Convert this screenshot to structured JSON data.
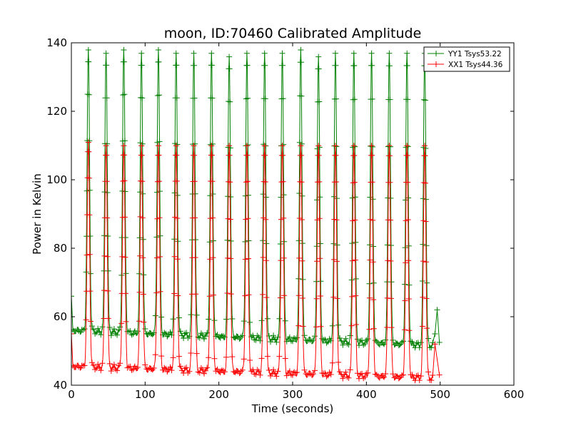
{
  "chart_data": {
    "type": "line",
    "title": "moon, ID:70460 Calibrated Amplitude",
    "xlabel": "Time (seconds)",
    "ylabel": "Power in Kelvin",
    "xlim": [
      0,
      600
    ],
    "ylim": [
      40,
      140
    ],
    "xticks": [
      0,
      100,
      200,
      300,
      400,
      500,
      600
    ],
    "yticks": [
      40,
      60,
      80,
      100,
      120,
      140
    ],
    "grid": false,
    "legend_position": "top-right",
    "marker": "plus",
    "scan": {
      "start": 0,
      "end": 500,
      "sample_interval": 2,
      "peak_times": [
        23,
        47,
        71,
        95,
        118,
        142,
        166,
        190,
        214,
        238,
        262,
        286,
        311,
        335,
        358,
        383,
        407,
        431,
        455,
        479
      ]
    },
    "series": [
      {
        "name": "YY1 Tsys53.22",
        "color": "#008000",
        "start_value": 66,
        "baseline_start": 56,
        "baseline_end": 51.5,
        "peak_values": [
          138,
          137,
          138,
          137,
          138,
          137,
          137,
          137,
          136,
          137,
          137,
          137,
          138,
          136,
          137,
          137,
          137,
          137,
          137,
          137
        ],
        "tail": [
          [
            493,
            55
          ],
          [
            496,
            62
          ],
          [
            499,
            52.5
          ]
        ]
      },
      {
        "name": "XX1 Tsys44.36",
        "color": "#ff0000",
        "start_value": 55,
        "baseline_start": 45.5,
        "baseline_end": 42,
        "peak_values": [
          111,
          110,
          110,
          110,
          110,
          110,
          110,
          110,
          110,
          110,
          110,
          110,
          110,
          110,
          110,
          110,
          110,
          110,
          110,
          110
        ],
        "tail": [
          [
            493,
            52
          ],
          [
            499,
            43
          ]
        ]
      }
    ]
  }
}
